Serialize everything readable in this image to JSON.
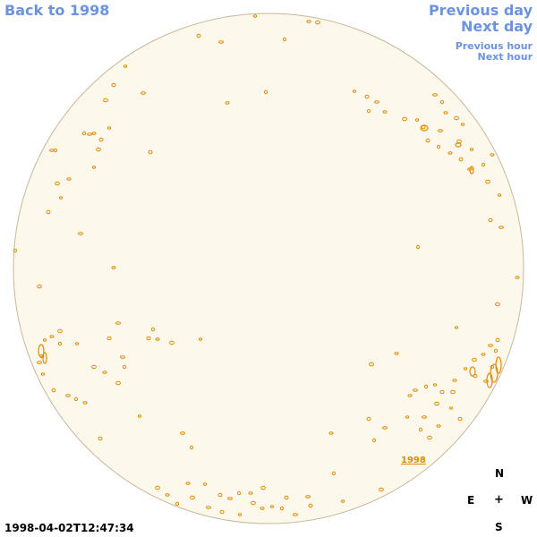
{
  "nav": {
    "back_label": "Back to 1998",
    "prev_day_label": "Previous day",
    "next_day_label": "Next day",
    "prev_hour_label": "Previous hour",
    "next_hour_label": "Next hour"
  },
  "map": {
    "year_label": "1998",
    "disk_color": "#fdf8ec",
    "disk_border_color": "#c8b89a",
    "feature_color": "#e08a00"
  },
  "compass": {
    "north": "N",
    "east": "E",
    "center": "+",
    "west": "W",
    "south": "S"
  },
  "timestamp": "1998-04-02T12:47:34"
}
